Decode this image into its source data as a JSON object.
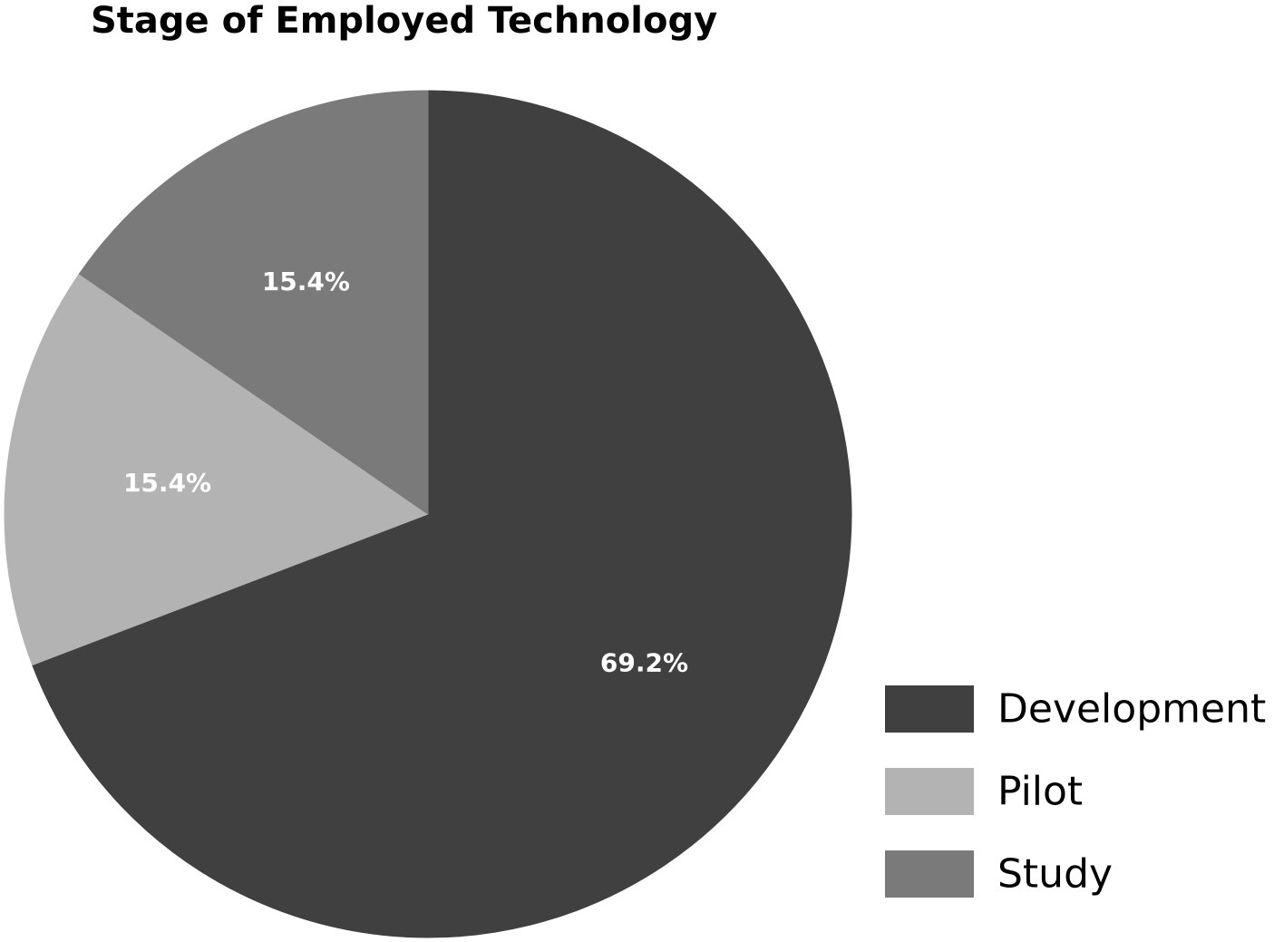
{
  "chart_data": {
    "type": "pie",
    "title": "Stage of Employed Technology",
    "slices": [
      {
        "label": "Development",
        "value": 69.2,
        "value_label": "69.2%",
        "color": "#404040"
      },
      {
        "label": "Pilot",
        "value": 15.4,
        "value_label": "15.4%",
        "color": "#b3b3b3"
      },
      {
        "label": "Study",
        "value": 15.4,
        "value_label": "15.4%",
        "color": "#7a7a7a"
      }
    ],
    "start_angle": "12 o'clock",
    "direction": "clockwise",
    "legend": {
      "position": "bottom-right",
      "items": [
        {
          "label": "Development",
          "color": "#404040"
        },
        {
          "label": "Pilot",
          "color": "#b3b3b3"
        },
        {
          "label": "Study",
          "color": "#7a7a7a"
        }
      ]
    }
  }
}
